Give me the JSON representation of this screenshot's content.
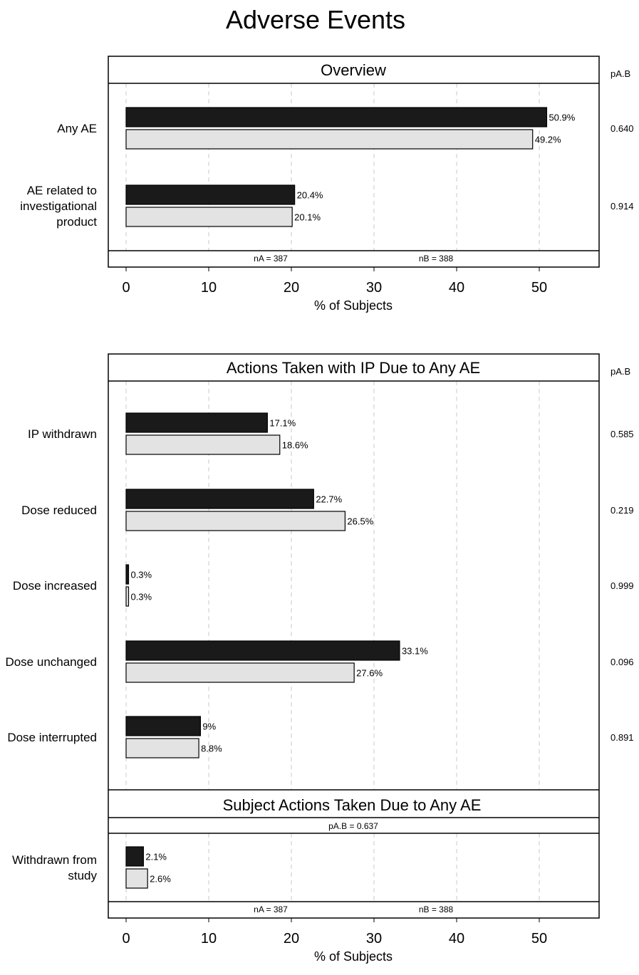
{
  "page_title": "Adverse Events",
  "colors": {
    "group_a": "#1a1a1a",
    "group_b": "#e3e3e3",
    "outline": "#000000",
    "grid": "#c8c8c8"
  },
  "chart_data": [
    {
      "type": "bar",
      "orientation": "horizontal",
      "panel_title": "Overview",
      "p_header": "pA.B",
      "categories": [
        "Any AE",
        "AE related to investigational product"
      ],
      "series": [
        {
          "values": [
            50.9,
            20.4
          ],
          "labels": [
            "50.9%",
            "20.4%"
          ]
        },
        {
          "values": [
            49.2,
            20.1
          ],
          "labels": [
            "49.2%",
            "20.1%"
          ]
        }
      ],
      "p_values": [
        "0.640",
        "0.914"
      ],
      "n_text": [
        "nA = 387",
        "nB = 388"
      ],
      "xticks": [
        0,
        10,
        20,
        30,
        40,
        50
      ],
      "xlim": [
        -2,
        57
      ],
      "xlabel": "% of Subjects",
      "grid": true
    },
    {
      "type": "bar",
      "orientation": "horizontal",
      "panel_title": "Actions Taken with IP Due to Any AE",
      "p_header": "pA.B",
      "categories": [
        "IP withdrawn",
        "Dose reduced",
        "Dose increased",
        "Dose unchanged",
        "Dose interrupted"
      ],
      "series": [
        {
          "values": [
            17.1,
            22.7,
            0.3,
            33.1,
            9.0
          ],
          "labels": [
            "17.1%",
            "22.7%",
            "0.3%",
            "33.1%",
            "9%"
          ]
        },
        {
          "values": [
            18.6,
            26.5,
            0.3,
            27.6,
            8.8
          ],
          "labels": [
            "18.6%",
            "26.5%",
            "0.3%",
            "27.6%",
            "8.8%"
          ]
        }
      ],
      "p_values": [
        "0.585",
        "0.219",
        "0.999",
        "0.096",
        "0.891"
      ],
      "xlim": [
        -2,
        57
      ],
      "grid": true
    },
    {
      "type": "bar",
      "orientation": "horizontal",
      "panel_title": "Subject Actions Taken Due to Any AE",
      "subtitle": "pA.B = 0.637",
      "categories": [
        "Withdrawn from study"
      ],
      "series": [
        {
          "values": [
            2.1
          ],
          "labels": [
            "2.1%"
          ]
        },
        {
          "values": [
            2.6
          ],
          "labels": [
            "2.6%"
          ]
        }
      ],
      "n_text": [
        "nA = 387",
        "nB = 388"
      ],
      "xticks": [
        0,
        10,
        20,
        30,
        40,
        50
      ],
      "xlim": [
        -2,
        57
      ],
      "xlabel": "% of Subjects",
      "grid": true
    }
  ]
}
